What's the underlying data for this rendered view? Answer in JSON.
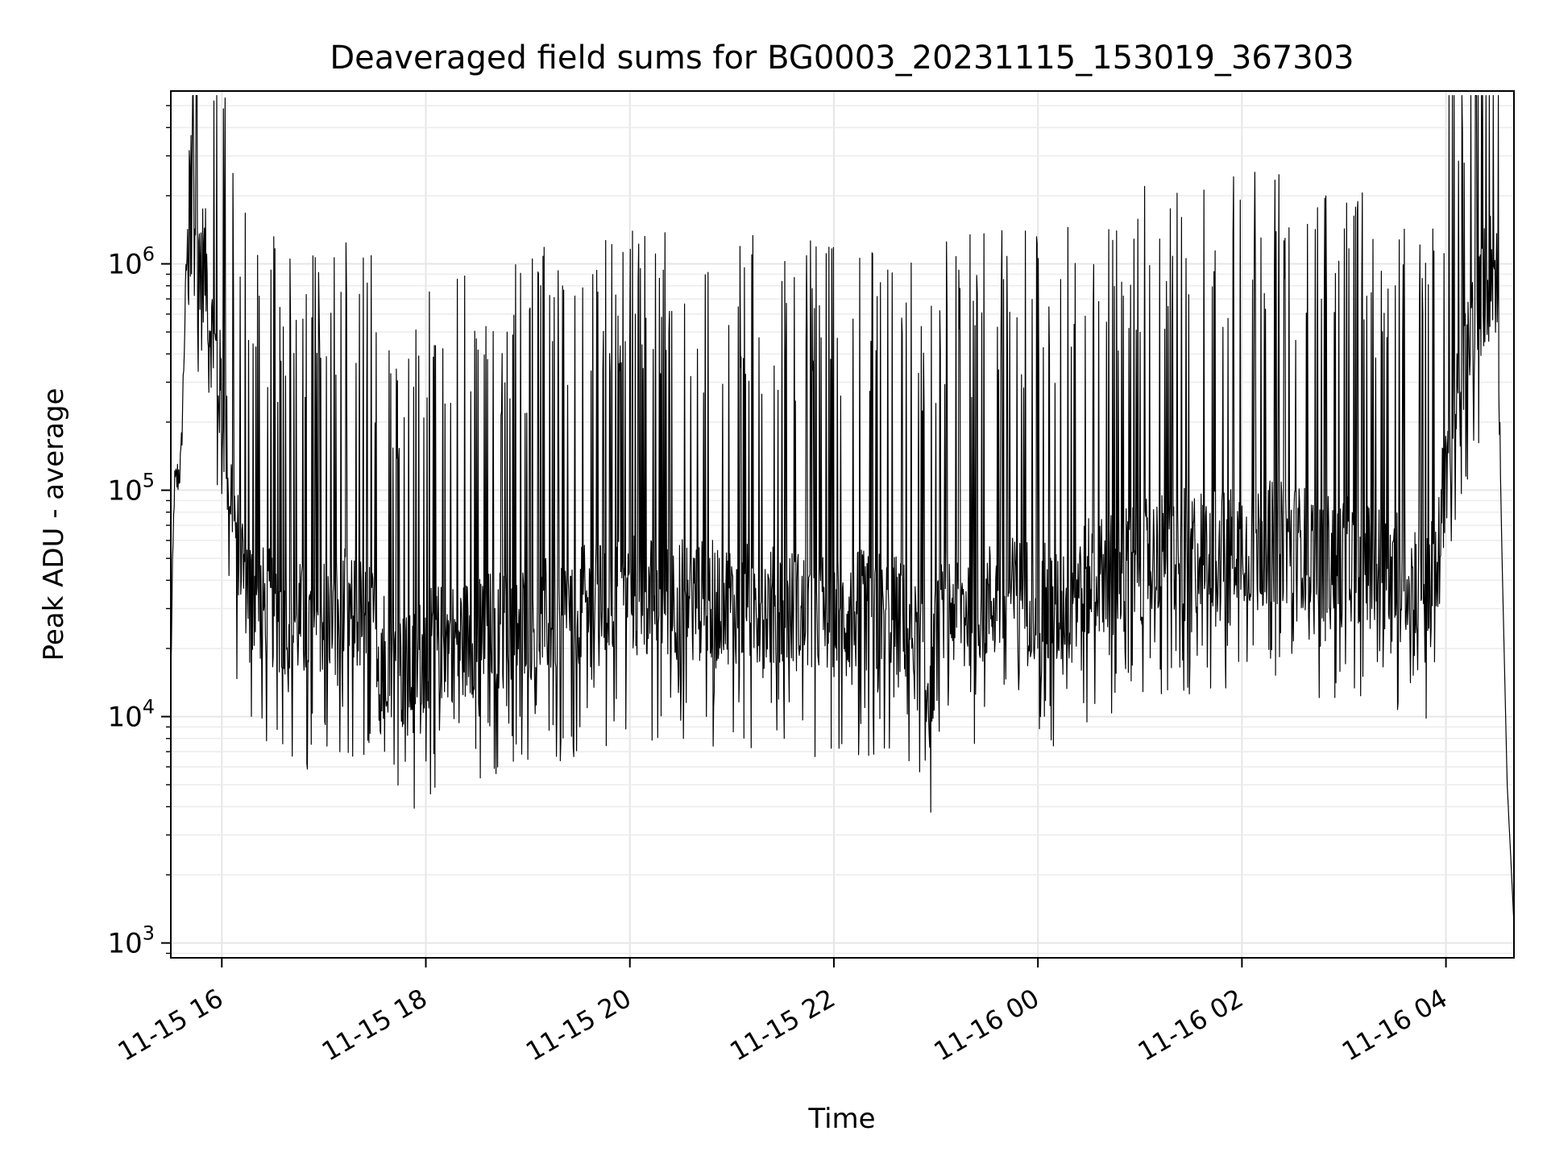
{
  "chart_data": {
    "type": "line",
    "title": "Deaveraged field sums for BG0003_20231115_153019_367303",
    "xlabel": "Time",
    "ylabel": "Peak ADU - average",
    "yscale": "log",
    "grid": true,
    "line_color": "#000000",
    "xlim": [
      "2023-11-15 15:30",
      "2023-11-16 04:40"
    ],
    "ylim": [
      860,
      5800000
    ],
    "xticks": [
      {
        "value": "2023-11-15 16:00",
        "label": "11-15 16"
      },
      {
        "value": "2023-11-15 18:00",
        "label": "11-15 18"
      },
      {
        "value": "2023-11-15 20:00",
        "label": "11-15 20"
      },
      {
        "value": "2023-11-15 22:00",
        "label": "11-15 22"
      },
      {
        "value": "2023-11-16 00:00",
        "label": "11-16 00"
      },
      {
        "value": "2023-11-16 02:00",
        "label": "11-16 02"
      },
      {
        "value": "2023-11-16 04:00",
        "label": "11-16 04"
      }
    ],
    "yticks": [
      {
        "value": 1000,
        "base": "10",
        "exp": "3"
      },
      {
        "value": 10000,
        "base": "10",
        "exp": "4"
      },
      {
        "value": 100000,
        "base": "10",
        "exp": "5"
      },
      {
        "value": 1000000,
        "base": "10",
        "exp": "6"
      }
    ],
    "series": [
      {
        "x": [
          "2023-11-15 15:30",
          "2023-11-15 15:32",
          "2023-11-15 15:36",
          "2023-11-15 15:39",
          "2023-11-15 15:42",
          "2023-11-15 15:45",
          "2023-11-15 15:48",
          "2023-11-15 15:51",
          "2023-11-15 15:54",
          "2023-11-15 15:57",
          "2023-11-15 16:00",
          "2023-11-15 16:03",
          "2023-11-15 16:06",
          "2023-11-15 16:09",
          "2023-11-15 16:12",
          "2023-11-15 16:15",
          "2023-11-15 16:20",
          "2023-11-15 16:25",
          "2023-11-15 16:30",
          "2023-11-15 16:40",
          "2023-11-15 16:50",
          "2023-11-15 17:00",
          "2023-11-15 17:15",
          "2023-11-15 17:30",
          "2023-11-15 17:40",
          "2023-11-15 17:50",
          "2023-11-15 18:00",
          "2023-11-15 18:20",
          "2023-11-15 18:40",
          "2023-11-15 19:00",
          "2023-11-15 19:30",
          "2023-11-15 20:00",
          "2023-11-15 20:30",
          "2023-11-15 21:00",
          "2023-11-15 21:30",
          "2023-11-15 22:00",
          "2023-11-15 22:30",
          "2023-11-15 22:45",
          "2023-11-15 22:55",
          "2023-11-15 23:05",
          "2023-11-15 23:30",
          "2023-11-16 00:00",
          "2023-11-16 00:10",
          "2023-11-16 00:20",
          "2023-11-16 00:40",
          "2023-11-16 01:00",
          "2023-11-16 01:30",
          "2023-11-16 02:00",
          "2023-11-16 02:30",
          "2023-11-16 03:00",
          "2023-11-16 03:30",
          "2023-11-16 03:55",
          "2023-11-16 04:00",
          "2023-11-16 04:05",
          "2023-11-16 04:10",
          "2023-11-16 04:15",
          "2023-11-16 04:20",
          "2023-11-16 04:25",
          "2023-11-16 04:28",
          "2023-11-16 04:30",
          "2023-11-16 04:33",
          "2023-11-16 04:36",
          "2023-11-16 04:38",
          "2023-11-16 04:40"
        ],
        "y": [
          16000,
          100000,
          130000,
          900000,
          2600000,
          1300000,
          1100000,
          900000,
          500000,
          350000,
          250000,
          150000,
          90000,
          60000,
          50000,
          40000,
          35000,
          30000,
          30000,
          28000,
          25000,
          28000,
          30000,
          25000,
          18000,
          15000,
          20000,
          22000,
          24000,
          26000,
          30000,
          35000,
          33000,
          32000,
          30000,
          28000,
          30000,
          25000,
          14000,
          30000,
          32000,
          35000,
          28000,
          38000,
          42000,
          50000,
          55000,
          60000,
          58000,
          50000,
          45000,
          40000,
          150000,
          200000,
          300000,
          500000,
          700000,
          900000,
          1000000,
          800000,
          50000,
          5000,
          2500,
          1200
        ]
      }
    ]
  }
}
